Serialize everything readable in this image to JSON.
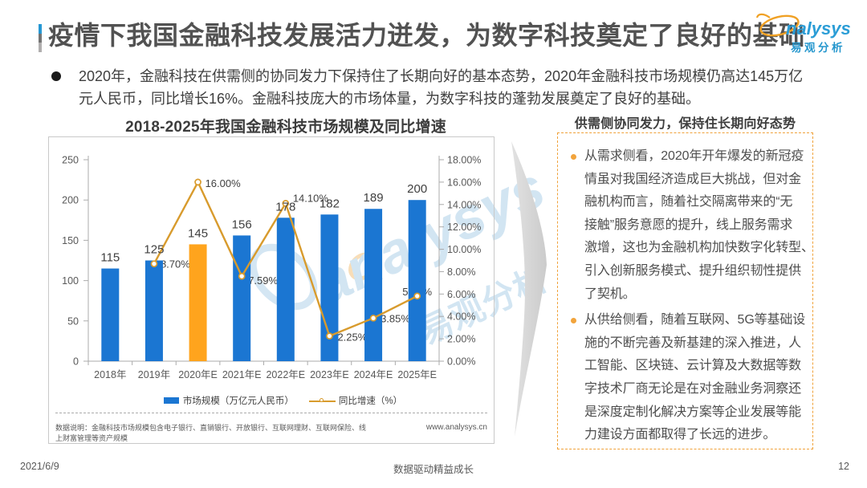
{
  "header": {
    "title": "疫情下我国金融科技发展活力迸发，为数字科技奠定了良好的基础",
    "logo_text": "analysys",
    "logo_subtext": "易观分析"
  },
  "intro": {
    "bullet": "●",
    "text": "2020年，金融科技在供需侧的协同发力下保持住了长期向好的基本态势，2020年金融科技市场规模仍高达145万亿\n元人民币，同比增长16%。金融科技庞大的市场体量，为数字科技的蓬勃发展奠定了良好的基础。"
  },
  "chart_data": {
    "type": "bar+line",
    "title": "2018-2025年我国金融科技市场规模及同比增速",
    "categories": [
      "2018年",
      "2019年",
      "2020年E",
      "2021年E",
      "2022年E",
      "2023年E",
      "2024年E",
      "2025年E"
    ],
    "series": [
      {
        "name": "市场规模（万亿元人民币）",
        "type": "bar",
        "values": [
          115,
          125,
          145,
          156,
          178,
          182,
          189,
          200
        ],
        "color": "#1b76d2",
        "highlight_index": 2,
        "highlight_color": "#ffa41d"
      },
      {
        "name": "同比增速（%）",
        "type": "line",
        "values": [
          null,
          8.7,
          16.0,
          7.59,
          14.1,
          2.25,
          3.85,
          5.82
        ],
        "labels": [
          "",
          "8.70%",
          "16.00%",
          "7.59%",
          "14.10%",
          "2.25%",
          "3.85%",
          "5.82%"
        ],
        "color": "#d89b2d"
      }
    ],
    "left_axis": {
      "min": 0,
      "max": 250,
      "step": 50,
      "ticks": [
        "0",
        "50",
        "100",
        "150",
        "200",
        "250"
      ]
    },
    "right_axis": {
      "min": 0,
      "max": 18,
      "step": 2,
      "ticks": [
        "0.00%",
        "2.00%",
        "4.00%",
        "6.00%",
        "8.00%",
        "10.00%",
        "12.00%",
        "14.00%",
        "16.00%",
        "18.00%"
      ]
    },
    "grid": false,
    "legend_position": "bottom"
  },
  "chart_extra": {
    "note": "数据说明：金融科技市场规模包含电子银行、直销银行、开放银行、互联网理财、互联网保险、线\n上财富管理等资产规模",
    "source": "www.analysys.cn"
  },
  "panel": {
    "heading": "供需侧协同发力，保持住长期向好态势",
    "bullets": [
      "从需求侧看，2020年开年爆发的新冠疫\n情虽对我国经济造成巨大挑战，但对金\n融机构而言，随着社交隔离带来的“无\n接触”服务意愿的提升，线上服务需求\n激增，这也为金融机构加快数字化转型、\n引入创新服务模式、提升组织韧性提供\n了契机。",
      "从供给侧看，随着互联网、5G等基础设\n施的不断完善及新基建的深入推进，人\n工智能、区块链、云计算及大数据等数\n字技术厂商无论是在对金融业务洞察还\n是深度定制化解决方案等企业发展等能\n力建设方面都取得了长远的进步。"
    ]
  },
  "watermark": {
    "text1": "analysys",
    "text2": "易观分析"
  },
  "footer": {
    "date": "2021/6/9",
    "center": "数据驱动精益成长",
    "page": "12"
  },
  "colors": {
    "bar_blue": "#1b76d2",
    "bar_orange": "#ffa41d",
    "line_gold": "#d89b2d",
    "accent_blue": "#2597d3",
    "panel_border": "#f0a23a",
    "text_dark": "#3f3f3f",
    "text_gray": "#595959"
  }
}
